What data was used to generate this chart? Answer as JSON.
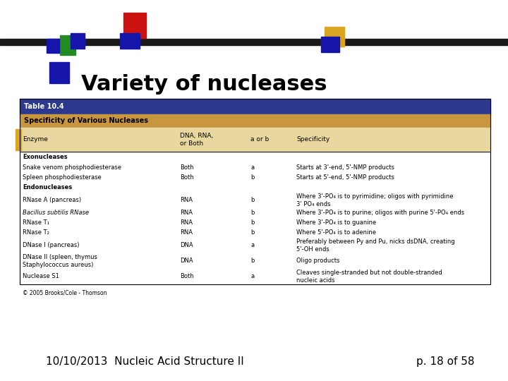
{
  "title": "Variety of nucleases",
  "footer_left": "10/10/2013  Nucleic Acid Structure II",
  "footer_right": "p. 18 of 58",
  "table_title": "Table 10.4",
  "table_subtitle": "Specificity of Various Nucleases",
  "col_headers": [
    "Enzyme",
    "DNA, RNA,\nor Both",
    "a or b",
    "Specificity"
  ],
  "header_bg": "#2B3A8F",
  "subheader_bg": "#C8963E",
  "col_header_bg": "#E8D8A0",
  "rows": [
    {
      "enzyme": "Exonucleases",
      "dna_rna": "",
      "ab": "",
      "specificity": "",
      "bold": true,
      "bg": "#FFFFFF"
    },
    {
      "enzyme": "Snake venom phosphodiesterase",
      "dna_rna": "Both",
      "ab": "a",
      "specificity": "Starts at 3'-end, 5'-NMP products",
      "bold": false,
      "bg": "#FFFFFF"
    },
    {
      "enzyme": "Spleen phosphodiesterase",
      "dna_rna": "Both",
      "ab": "b",
      "specificity": "Starts at 5'-end, 5'-NMP products",
      "bold": false,
      "bg": "#FFFFFF"
    },
    {
      "enzyme": "Endonucleases",
      "dna_rna": "",
      "ab": "",
      "specificity": "",
      "bold": true,
      "bg": "#FFFFFF"
    },
    {
      "enzyme": "RNase A (pancreas)",
      "dna_rna": "RNA",
      "ab": "b",
      "specificity": "Where 3'-PO₄ is to pyrimidine; oligos with pyrimidine\n3' PO₄ ends",
      "bold": false,
      "bg": "#FFFFFF"
    },
    {
      "enzyme": "Bacillus subtilis RNase",
      "dna_rna": "RNA",
      "ab": "b",
      "specificity": "Where 3'-PO₄ is to purine; oligos with purine 5'-PO₄ ends",
      "bold": false,
      "italic_enzyme": true,
      "bg": "#FFFFFF"
    },
    {
      "enzyme": "RNase T₁",
      "dna_rna": "RNA",
      "ab": "b",
      "specificity": "Where 3'-PO₄ is to guanine",
      "bold": false,
      "bg": "#FFFFFF"
    },
    {
      "enzyme": "RNase T₂",
      "dna_rna": "RNA",
      "ab": "b",
      "specificity": "Where 5'-PO₄ is to adenine",
      "bold": false,
      "bg": "#FFFFFF"
    },
    {
      "enzyme": "DNase I (pancreas)",
      "dna_rna": "DNA",
      "ab": "a",
      "specificity": "Preferably between Py and Pu, nicks dsDNA, creating\n5'-OH ends",
      "bold": false,
      "bg": "#FFFFFF"
    },
    {
      "enzyme": "DNase II (spleen, thymus\nStaphylococcus aureus)",
      "dna_rna": "DNA",
      "ab": "b",
      "specificity": "Oligo products",
      "bold": false,
      "bg": "#FFFFFF"
    },
    {
      "enzyme": "Nuclease S1",
      "dna_rna": "Both",
      "ab": "a",
      "specificity": "Cleaves single-stranded but not double-stranded\nnucleic acids",
      "bold": false,
      "bg": "#FFFFFF"
    }
  ],
  "copyright": "© 2005 Brooks/Cole - Thomson",
  "bg_color": "#FFFFFF",
  "bar_color": "#1a1a1a",
  "green_sq": "#228B22",
  "darkblue_sq": "#1515AA",
  "red_sq": "#CC1111",
  "yellow_sq": "#DAA520",
  "title_fontsize": 22,
  "footer_fontsize": 11,
  "table_fontsize": 6.0
}
